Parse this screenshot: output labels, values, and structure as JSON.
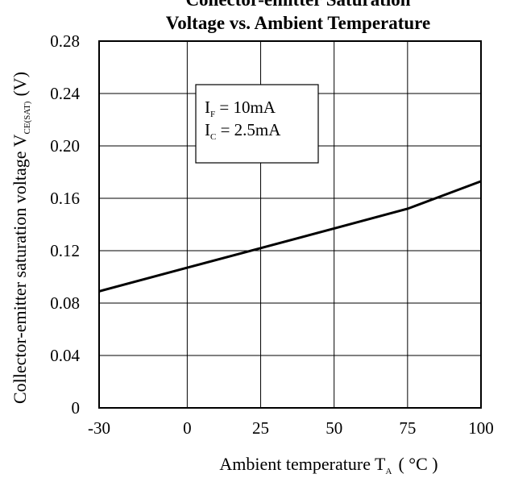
{
  "chart_data": {
    "type": "line",
    "title_line1": "Collector-emitter Saturation",
    "title_line2": "Voltage vs. Ambient Temperature",
    "xlabel": "Ambient temperature T",
    "xlabel_sub": "A",
    "xlabel_unit": "( °C )",
    "ylabel": "Collector-emitter saturation voltage V",
    "ylabel_sub": "CE(SAT)",
    "ylabel_unit": "(V)",
    "xlim": [
      -30,
      100
    ],
    "ylim": [
      0,
      0.28
    ],
    "x_ticks": [
      "-30",
      "0",
      "25",
      "50",
      "75",
      "100"
    ],
    "y_ticks": [
      "0",
      "0.04",
      "0.08",
      "0.12",
      "0.16",
      "0.20",
      "0.24",
      "0.28"
    ],
    "grid": true,
    "x_values": [
      -30,
      0,
      25,
      50,
      75,
      100
    ],
    "y_values": [
      0.089,
      0.107,
      0.122,
      0.137,
      0.152,
      0.173
    ],
    "annotation_line1": {
      "symbol": "I",
      "sub": "F",
      "text": " = 10mA"
    },
    "annotation_line2": {
      "symbol": "I",
      "sub": "C",
      "text": " = 2.5mA"
    }
  }
}
